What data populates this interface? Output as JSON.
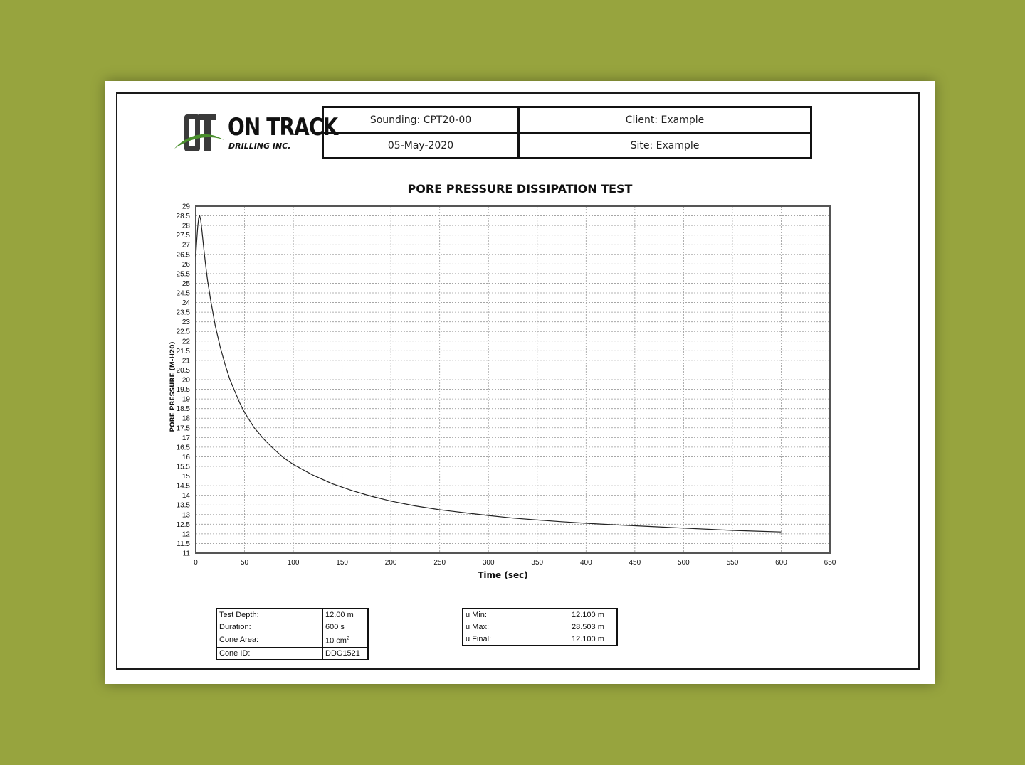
{
  "logo": {
    "mark": "OT",
    "name": "ON TRACK",
    "subtitle": "DRILLING INC."
  },
  "header": {
    "sounding": "Sounding: CPT20-00",
    "client": "Client: Example",
    "date": "05-May-2020",
    "site": "Site: Example"
  },
  "colors": {
    "background": "#97a43e",
    "logo_green": "#4a8f2c",
    "line": "#222222"
  },
  "chart_data": {
    "type": "line",
    "title": "PORE PRESSURE DISSIPATION TEST",
    "xlabel": "Time (sec)",
    "ylabel": "PORE PRESSURE  (M-H20)",
    "xlim": [
      0,
      650
    ],
    "ylim": [
      11,
      29
    ],
    "x_ticks": [
      0,
      50,
      100,
      150,
      200,
      250,
      300,
      350,
      400,
      450,
      500,
      550,
      600,
      650
    ],
    "y_ticks": [
      11,
      11.5,
      12,
      12.5,
      13,
      13.5,
      14,
      14.5,
      15,
      15.5,
      16,
      16.5,
      17,
      17.5,
      18,
      18.5,
      19,
      19.5,
      20,
      20.5,
      21,
      21.5,
      22,
      22.5,
      23,
      23.5,
      24,
      24.5,
      25,
      25.5,
      26,
      26.5,
      27,
      27.5,
      28,
      28.5,
      29
    ],
    "grid": true,
    "series": [
      {
        "x": [
          0,
          1,
          2,
          3,
          4,
          5,
          6,
          8,
          10,
          12,
          15,
          20,
          25,
          30,
          35,
          40,
          45,
          50,
          60,
          70,
          80,
          90,
          100,
          120,
          140,
          160,
          180,
          200,
          225,
          250,
          275,
          300,
          325,
          350,
          375,
          400,
          425,
          450,
          475,
          500,
          525,
          550,
          575,
          600
        ],
        "y": [
          26.4,
          27.2,
          27.9,
          28.4,
          28.5,
          28.3,
          27.9,
          26.9,
          26.0,
          25.2,
          24.2,
          22.8,
          21.7,
          20.8,
          20.0,
          19.4,
          18.8,
          18.3,
          17.5,
          16.9,
          16.4,
          15.95,
          15.6,
          15.05,
          14.6,
          14.25,
          13.95,
          13.7,
          13.45,
          13.25,
          13.1,
          12.95,
          12.82,
          12.72,
          12.63,
          12.55,
          12.48,
          12.42,
          12.36,
          12.3,
          12.24,
          12.18,
          12.14,
          12.1
        ]
      }
    ]
  },
  "test_info": {
    "depth_label": "Test Depth:",
    "depth_value": "12.00 m",
    "duration_label": "Duration:",
    "duration_value": "600 s",
    "area_label": "Cone Area:",
    "area_value": "10 cm",
    "area_unit_sup": "2",
    "cone_label": "Cone ID:",
    "cone_value": "DDG1521"
  },
  "results": {
    "umin_label": "u Min:",
    "umin_value": "12.100 m",
    "umax_label": "u Max:",
    "umax_value": "28.503 m",
    "ufinal_label": "u Final:",
    "ufinal_value": "12.100 m"
  }
}
